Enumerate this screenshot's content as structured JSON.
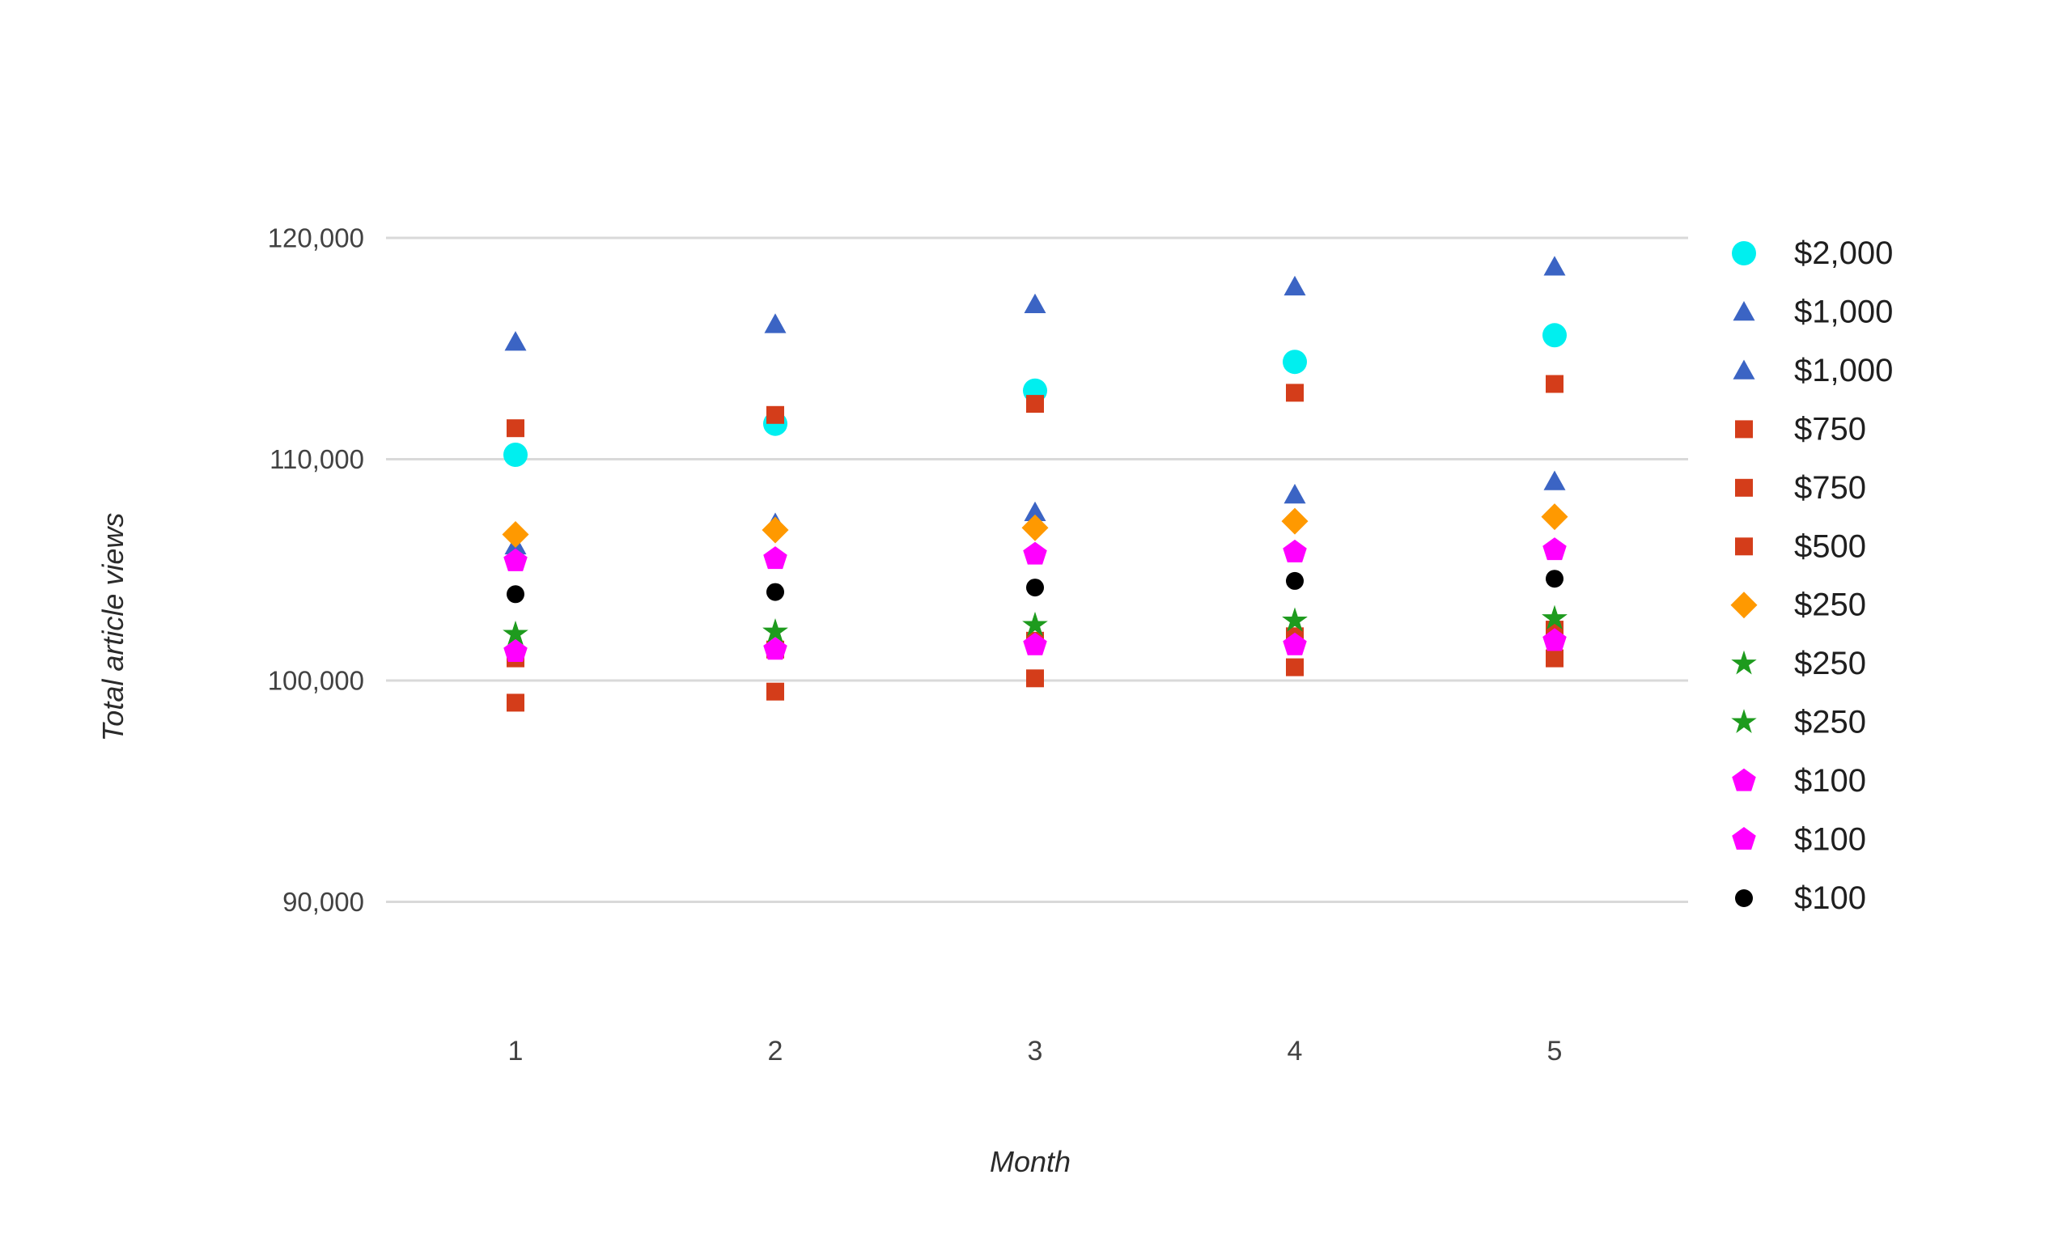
{
  "chart_data": {
    "type": "scatter",
    "title": "",
    "xlabel": "Month",
    "ylabel": "Total article views",
    "grid": true,
    "legend_position": "right",
    "x": [
      1,
      2,
      3,
      4,
      5
    ],
    "x_tick_labels": [
      "1",
      "2",
      "3",
      "4",
      "5"
    ],
    "y_ticks": [
      90000,
      100000,
      110000,
      120000
    ],
    "y_tick_labels": [
      "90,000",
      "100,000",
      "110,000",
      "120,000"
    ],
    "ylim": [
      86000,
      121600
    ],
    "xlim": [
      0.35,
      5.5
    ],
    "series": [
      {
        "name": "$2,000",
        "marker": "circle",
        "color": "#00EFEF",
        "size": 30,
        "values": [
          110200,
          111600,
          113100,
          114400,
          115600
        ]
      },
      {
        "name": "$1,000",
        "marker": "triangle",
        "color": "#3B64C4",
        "size": 27,
        "values": [
          115300,
          116100,
          117000,
          117800,
          118700
        ]
      },
      {
        "name": "$1,000",
        "marker": "triangle",
        "color": "#3B64C4",
        "size": 27,
        "values": [
          106100,
          107100,
          107600,
          108400,
          109000
        ]
      },
      {
        "name": "$750",
        "marker": "square",
        "color": "#D43D1A",
        "size": 22,
        "values": [
          111400,
          112000,
          112500,
          113000,
          113400
        ]
      },
      {
        "name": "$750",
        "marker": "square",
        "color": "#D43D1A",
        "size": 22,
        "values": [
          101000,
          101400,
          101800,
          102000,
          102300
        ]
      },
      {
        "name": "$500",
        "marker": "square",
        "color": "#D43D1A",
        "size": 22,
        "values": [
          99000,
          99500,
          100100,
          100600,
          101000
        ]
      },
      {
        "name": "$250",
        "marker": "diamond",
        "color": "#FF9900",
        "size": 33,
        "values": [
          106600,
          106800,
          106900,
          107200,
          107400
        ]
      },
      {
        "name": "$250",
        "marker": "star",
        "color": "#1E9B1E",
        "size": 33,
        "values": [
          102100,
          102200,
          102500,
          102700,
          102800
        ]
      },
      {
        "name": "$250",
        "marker": "star",
        "color": "#1E9B1E",
        "size": 33,
        "values": [
          102100,
          102200,
          102500,
          102700,
          102800
        ]
      },
      {
        "name": "$100",
        "marker": "pentagon",
        "color": "#FF00FF",
        "size": 31,
        "values": [
          105400,
          105500,
          105700,
          105800,
          105900
        ]
      },
      {
        "name": "$100",
        "marker": "pentagon",
        "color": "#FF00FF",
        "size": 31,
        "values": [
          101300,
          101400,
          101600,
          101600,
          101800
        ]
      },
      {
        "name": "$100",
        "marker": "circle",
        "color": "#000000",
        "size": 22,
        "values": [
          103900,
          104000,
          104200,
          104500,
          104600
        ]
      }
    ]
  },
  "style": {
    "gridline_color": "#D9D9D9",
    "background_color": "#FFFFFF",
    "tick_label_color": "#424242",
    "axis_title_color": "#2B2B2B",
    "legend_text_color": "#1F1F1F"
  }
}
